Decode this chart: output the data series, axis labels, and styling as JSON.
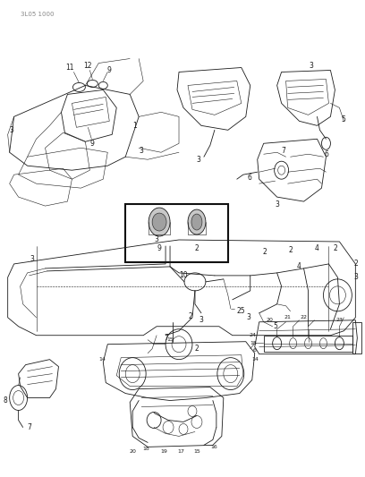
{
  "page_code": "3L05 1000",
  "bg": "#ffffff",
  "lc": "#1a1a1a",
  "fig_w": 4.08,
  "fig_h": 5.33,
  "dpi": 100
}
